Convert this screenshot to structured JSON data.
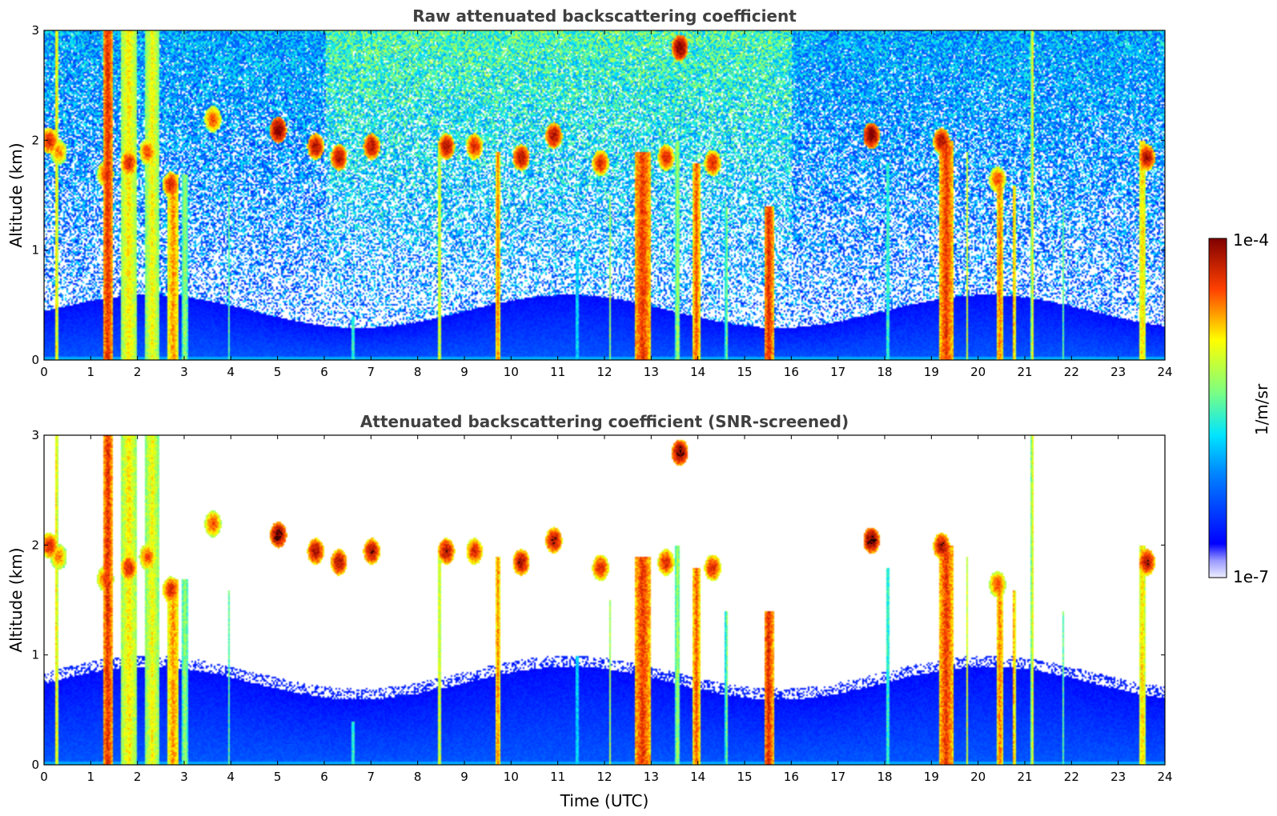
{
  "chart_data": [
    {
      "type": "heatmap",
      "title": "Raw attenuated backscattering coefficient",
      "xlabel": "",
      "ylabel": "Altitude (km)",
      "xlim": [
        0,
        24
      ],
      "ylim": [
        0,
        3
      ],
      "xticks": [
        "0",
        "1",
        "2",
        "3",
        "4",
        "5",
        "6",
        "7",
        "8",
        "9",
        "10",
        "11",
        "12",
        "13",
        "14",
        "15",
        "16",
        "17",
        "18",
        "19",
        "20",
        "21",
        "22",
        "23",
        "24"
      ],
      "yticks": [
        "0",
        "1",
        "2",
        "3"
      ],
      "screened": false,
      "colormap": "jet"
    },
    {
      "type": "heatmap",
      "title": "Attenuated backscattering coefficient (SNR-screened)",
      "xlabel": "Time (UTC)",
      "ylabel": "Altitude (km)",
      "xlim": [
        0,
        24
      ],
      "ylim": [
        0,
        3
      ],
      "xticks": [
        "0",
        "1",
        "2",
        "3",
        "4",
        "5",
        "6",
        "7",
        "8",
        "9",
        "10",
        "11",
        "12",
        "13",
        "14",
        "15",
        "16",
        "17",
        "18",
        "19",
        "20",
        "21",
        "22",
        "23",
        "24"
      ],
      "yticks": [
        "0",
        "1",
        "2",
        "3"
      ],
      "screened": true,
      "colormap": "jet"
    }
  ],
  "colorbar": {
    "label": "1/m/sr",
    "max_label": "1e-4",
    "min_label": "1e-7",
    "scale": "log",
    "range": [
      1e-07,
      0.0001
    ]
  },
  "features": {
    "clouds": [
      {
        "t": 0.1,
        "z": 2.0,
        "v": 0.9
      },
      {
        "t": 0.3,
        "z": 1.9,
        "v": 0.8
      },
      {
        "t": 1.3,
        "z": 1.7,
        "v": 0.85
      },
      {
        "t": 1.8,
        "z": 1.8,
        "v": 0.9
      },
      {
        "t": 2.2,
        "z": 1.9,
        "v": 0.85
      },
      {
        "t": 2.7,
        "z": 1.6,
        "v": 0.9
      },
      {
        "t": 3.6,
        "z": 2.2,
        "v": 0.85
      },
      {
        "t": 5.0,
        "z": 2.1,
        "v": 1.0
      },
      {
        "t": 5.8,
        "z": 1.95,
        "v": 0.95
      },
      {
        "t": 6.3,
        "z": 1.85,
        "v": 0.95
      },
      {
        "t": 7.0,
        "z": 1.95,
        "v": 0.95
      },
      {
        "t": 8.6,
        "z": 1.95,
        "v": 0.95
      },
      {
        "t": 9.2,
        "z": 1.95,
        "v": 0.9
      },
      {
        "t": 10.2,
        "z": 1.85,
        "v": 0.95
      },
      {
        "t": 10.9,
        "z": 2.05,
        "v": 0.95
      },
      {
        "t": 11.9,
        "z": 1.8,
        "v": 0.9
      },
      {
        "t": 13.3,
        "z": 1.85,
        "v": 0.9
      },
      {
        "t": 13.6,
        "z": 2.85,
        "v": 1.0
      },
      {
        "t": 14.3,
        "z": 1.8,
        "v": 0.9
      },
      {
        "t": 17.7,
        "z": 2.05,
        "v": 1.0
      },
      {
        "t": 19.2,
        "z": 2.0,
        "v": 0.95
      },
      {
        "t": 20.4,
        "z": 1.65,
        "v": 0.85
      },
      {
        "t": 23.6,
        "z": 1.85,
        "v": 0.95
      }
    ],
    "columns": [
      {
        "t": 0.25,
        "w": 0.06,
        "top": 3.0,
        "v": 0.75
      },
      {
        "t": 1.35,
        "w": 0.2,
        "top": 3.0,
        "v": 0.9
      },
      {
        "t": 1.8,
        "w": 0.35,
        "top": 3.0,
        "v": 0.72
      },
      {
        "t": 2.3,
        "w": 0.3,
        "top": 3.0,
        "v": 0.7
      },
      {
        "t": 2.75,
        "w": 0.25,
        "top": 1.7,
        "v": 0.8
      },
      {
        "t": 3.0,
        "w": 0.15,
        "top": 1.7,
        "v": 0.6
      },
      {
        "t": 3.95,
        "w": 0.05,
        "top": 1.6,
        "v": 0.55
      },
      {
        "t": 6.6,
        "w": 0.06,
        "top": 0.4,
        "v": 0.55
      },
      {
        "t": 8.45,
        "w": 0.08,
        "top": 1.9,
        "v": 0.7
      },
      {
        "t": 9.7,
        "w": 0.12,
        "top": 1.9,
        "v": 0.8
      },
      {
        "t": 11.4,
        "w": 0.05,
        "top": 1.0,
        "v": 0.5
      },
      {
        "t": 12.1,
        "w": 0.05,
        "top": 1.5,
        "v": 0.6
      },
      {
        "t": 12.8,
        "w": 0.35,
        "top": 1.9,
        "v": 0.88
      },
      {
        "t": 13.55,
        "w": 0.1,
        "top": 2.0,
        "v": 0.62
      },
      {
        "t": 13.95,
        "w": 0.15,
        "top": 1.8,
        "v": 0.85
      },
      {
        "t": 14.6,
        "w": 0.06,
        "top": 1.4,
        "v": 0.58
      },
      {
        "t": 15.5,
        "w": 0.2,
        "top": 1.4,
        "v": 0.9
      },
      {
        "t": 18.05,
        "w": 0.06,
        "top": 1.8,
        "v": 0.55
      },
      {
        "t": 19.3,
        "w": 0.3,
        "top": 2.0,
        "v": 0.88
      },
      {
        "t": 19.75,
        "w": 0.06,
        "top": 1.9,
        "v": 0.65
      },
      {
        "t": 20.45,
        "w": 0.15,
        "top": 1.7,
        "v": 0.82
      },
      {
        "t": 20.75,
        "w": 0.08,
        "top": 1.6,
        "v": 0.78
      },
      {
        "t": 21.15,
        "w": 0.06,
        "top": 3.0,
        "v": 0.7
      },
      {
        "t": 21.8,
        "w": 0.05,
        "top": 1.4,
        "v": 0.55
      },
      {
        "t": 23.5,
        "w": 0.15,
        "top": 2.0,
        "v": 0.75
      }
    ]
  }
}
